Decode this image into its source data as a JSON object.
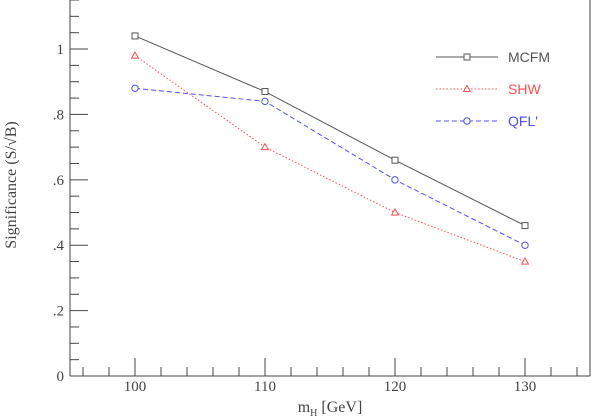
{
  "chart_data": {
    "type": "line",
    "xlabel": "m",
    "xlabel_sub": "H",
    "xlabel_unit": "[GeV]",
    "ylabel": "Significance (S/√B)",
    "xlim": [
      95,
      135
    ],
    "ylim": [
      0,
      1.15
    ],
    "x_ticks": [
      {
        "value": 100,
        "label": "100"
      },
      {
        "value": 110,
        "label": "110"
      },
      {
        "value": 120,
        "label": "120"
      },
      {
        "value": 130,
        "label": "130"
      }
    ],
    "y_ticks": [
      {
        "value": 0,
        "label": "0"
      },
      {
        "value": 0.2,
        "label": ".2"
      },
      {
        "value": 0.4,
        "label": ".4"
      },
      {
        "value": 0.6,
        "label": ".6"
      },
      {
        "value": 0.8,
        "label": ".8"
      },
      {
        "value": 1.0,
        "label": "1"
      }
    ],
    "legend_position": "top-right",
    "series": [
      {
        "name": "MCFM",
        "color": "#555555",
        "marker": "square",
        "dash": "solid",
        "x": [
          100,
          110,
          120,
          130
        ],
        "y": [
          1.04,
          0.87,
          0.66,
          0.46
        ]
      },
      {
        "name": "SHW",
        "color": "#ff4d4d",
        "marker": "triangle",
        "dash": "dotted",
        "x": [
          100,
          110,
          120,
          130
        ],
        "y": [
          0.98,
          0.7,
          0.5,
          0.35
        ]
      },
      {
        "name": "QFL'",
        "color": "#4d4dff",
        "marker": "circle",
        "dash": "dashed",
        "x": [
          100,
          110,
          120,
          130
        ],
        "y": [
          0.88,
          0.84,
          0.6,
          0.4
        ]
      }
    ]
  }
}
